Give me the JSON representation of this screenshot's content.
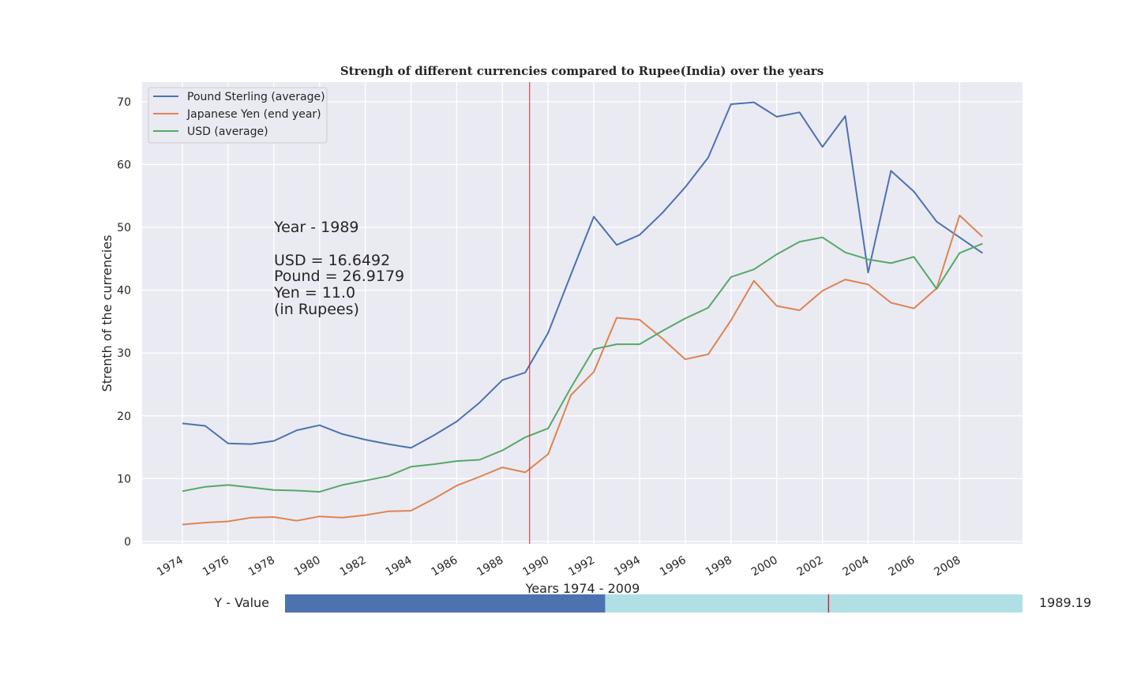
{
  "chart_data": {
    "type": "line",
    "title": "Strengh of different currencies compared to Rupee(India) over the years",
    "xlabel": "Years 1974 - 2009",
    "ylabel": "Strenth of the currencies",
    "xlim": [
      1974,
      2009
    ],
    "ylim": [
      0,
      70
    ],
    "x_ticks": [
      "1974",
      "1976",
      "1978",
      "1980",
      "1982",
      "1984",
      "1986",
      "1988",
      "1990",
      "1992",
      "1994",
      "1996",
      "1998",
      "2000",
      "2002",
      "2004",
      "2006",
      "2008"
    ],
    "y_ticks": [
      "0",
      "10",
      "20",
      "30",
      "40",
      "50",
      "60",
      "70"
    ],
    "grid": true,
    "legend_position": "top-left",
    "cursor_x": 1989.19,
    "x": [
      1974,
      1975,
      1976,
      1977,
      1978,
      1979,
      1980,
      1981,
      1982,
      1983,
      1984,
      1985,
      1986,
      1987,
      1988,
      1989,
      1990,
      1991,
      1992,
      1993,
      1994,
      1995,
      1996,
      1997,
      1998,
      1999,
      2000,
      2001,
      2002,
      2003,
      2004,
      2005,
      2006,
      2007,
      2008,
      2009
    ],
    "series": [
      {
        "name": "Pound Sterling (average)",
        "color": "#4c72b0",
        "values": [
          18.8,
          18.4,
          15.6,
          15.5,
          16.0,
          17.7,
          18.5,
          17.1,
          16.2,
          15.5,
          14.9,
          16.9,
          19.1,
          22.1,
          25.7,
          26.9,
          33.2,
          42.5,
          51.7,
          47.2,
          48.8,
          52.3,
          56.4,
          61.1,
          69.6,
          69.9,
          67.6,
          68.3,
          62.8,
          67.7,
          42.8,
          59.0,
          55.7,
          50.9,
          48.4,
          45.9
        ]
      },
      {
        "name": "Japanese Yen (end year)",
        "color": "#dd8452",
        "values": [
          2.7,
          3.0,
          3.2,
          3.8,
          3.9,
          3.3,
          4.0,
          3.8,
          4.2,
          4.8,
          4.9,
          6.8,
          8.9,
          10.3,
          11.8,
          11.0,
          13.9,
          23.3,
          27.0,
          35.6,
          35.3,
          32.3,
          29.0,
          29.8,
          35.2,
          41.5,
          37.5,
          36.8,
          39.9,
          41.7,
          40.9,
          38.0,
          37.1,
          40.3,
          51.9,
          48.5
        ]
      },
      {
        "name": "USD (average)",
        "color": "#55a868",
        "values": [
          8.0,
          8.7,
          9.0,
          8.6,
          8.2,
          8.1,
          7.9,
          9.0,
          9.7,
          10.4,
          11.9,
          12.3,
          12.8,
          13.0,
          14.5,
          16.6,
          18.0,
          24.5,
          30.6,
          31.4,
          31.4,
          33.5,
          35.5,
          37.2,
          42.1,
          43.3,
          45.7,
          47.7,
          48.4,
          46.0,
          44.9,
          44.3,
          45.3,
          40.2,
          45.9,
          47.4
        ]
      }
    ],
    "annotation": {
      "lines": [
        "Year - 1989",
        "",
        "USD = 16.6492",
        "Pound = 26.9179",
        "Yen = 11.0",
        "(in Rupees)"
      ]
    },
    "slider": {
      "label": "Y - Value",
      "value_text": "1989.19",
      "min": 1974,
      "max": 2009,
      "value": 1989.19,
      "fill_color": "#4c72b0",
      "track_color": "#b0e0e6",
      "marker_color": "#d62728"
    },
    "plot_bg": "#eaeaf2",
    "cursor_color": "#d62728"
  }
}
